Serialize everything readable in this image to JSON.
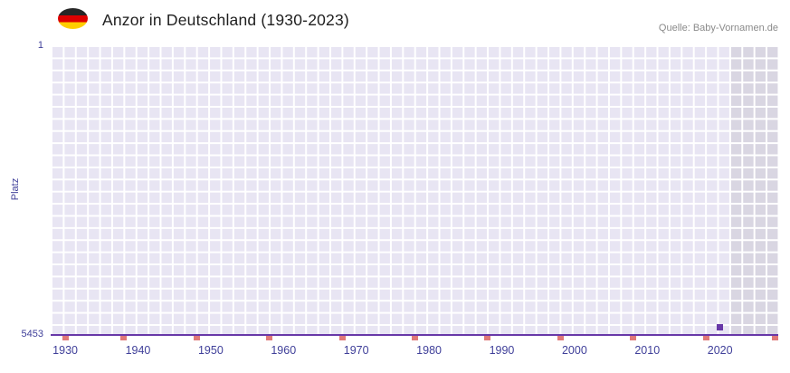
{
  "header": {
    "flag_icon": "german-flag",
    "title": "Anzor in Deutschland (1930-2023)",
    "source": "Quelle: Baby-Vornamen.de"
  },
  "chart_data": {
    "type": "line",
    "title": "Anzor in Deutschland (1930-2023)",
    "ylabel": "Platz",
    "legend": "none",
    "grid": "fine white grid on lavender background",
    "y_axis": {
      "top_label": "1",
      "bottom_label": "5453",
      "min": 1,
      "max": 5453,
      "inverted": true
    },
    "x_axis": {
      "min": 1928,
      "max": 2028,
      "tick_years": [
        1930,
        1940,
        1950,
        1960,
        1970,
        1980,
        1990,
        2000,
        2010,
        2020
      ]
    },
    "series": [
      {
        "name": "Anzor",
        "points": [
          {
            "year": 2020,
            "rank": 5300
          }
        ]
      }
    ],
    "baseline_rank": 5453,
    "highlight_region": {
      "from_year": 2021.5,
      "to_year": 2028
    },
    "red_tick_years": [
      1930,
      1938,
      1948,
      1958,
      1968,
      1978,
      1988,
      1998,
      2008,
      2018,
      2027.5
    ],
    "colors": {
      "accent_purple": "#6838a8",
      "plot_background": "#e8e5f3",
      "highlight_background": "#d9d6e2",
      "grid_line": "#ffffff",
      "no_data_tick": "#e07878",
      "axis_text": "#40409a",
      "source_text": "#8a8a8a",
      "title_text": "#1f1f1f"
    }
  }
}
